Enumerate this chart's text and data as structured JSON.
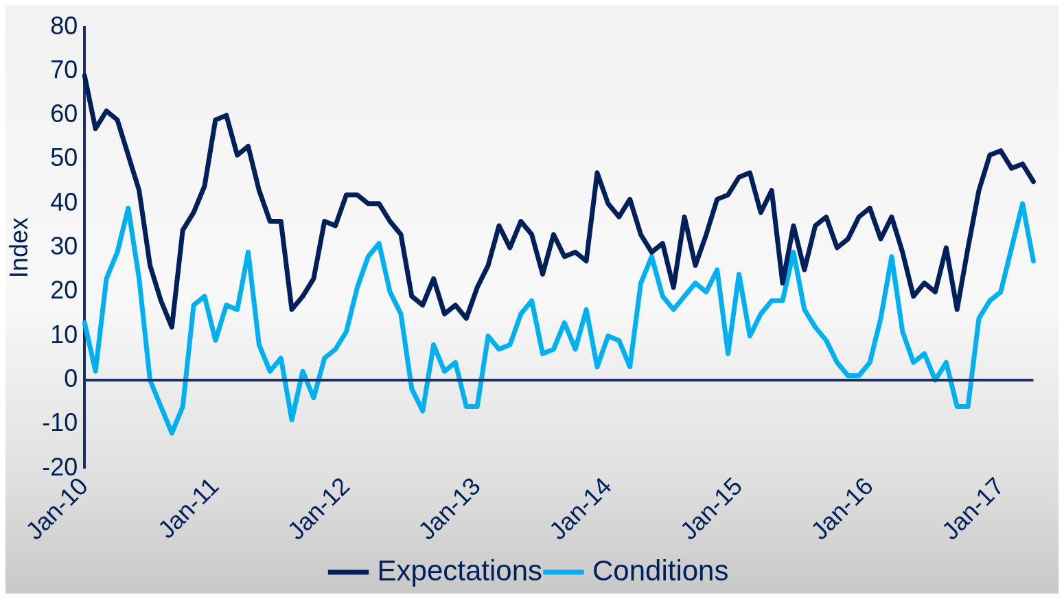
{
  "chart_data": {
    "type": "line",
    "ylabel": "Index",
    "categories": [
      "Jan-10",
      null,
      null,
      null,
      null,
      null,
      null,
      null,
      null,
      null,
      null,
      null,
      "Jan-11",
      null,
      null,
      null,
      null,
      null,
      null,
      null,
      null,
      null,
      null,
      null,
      "Jan-12",
      null,
      null,
      null,
      null,
      null,
      null,
      null,
      null,
      null,
      null,
      null,
      "Jan-13",
      null,
      null,
      null,
      null,
      null,
      null,
      null,
      null,
      null,
      null,
      null,
      "Jan-14",
      null,
      null,
      null,
      null,
      null,
      null,
      null,
      null,
      null,
      null,
      null,
      "Jan-15",
      null,
      null,
      null,
      null,
      null,
      null,
      null,
      null,
      null,
      null,
      null,
      "Jan-16",
      null,
      null,
      null,
      null,
      null,
      null,
      null,
      null,
      null,
      null,
      null,
      "Jan-17",
      null,
      null,
      null
    ],
    "series": [
      {
        "name": "Expectations",
        "color": "#00205b",
        "values": [
          69,
          57,
          61,
          59,
          51,
          43,
          26,
          18,
          12,
          34,
          38,
          44,
          59,
          60,
          51,
          53,
          43,
          36,
          36,
          16,
          19,
          23,
          36,
          35,
          42,
          42,
          40,
          40,
          36,
          33,
          19,
          17,
          23,
          15,
          17,
          14,
          21,
          26,
          35,
          30,
          36,
          33,
          24,
          33,
          28,
          29,
          27,
          47,
          40,
          37,
          41,
          33,
          29,
          31,
          21,
          37,
          26,
          33,
          41,
          42,
          46,
          47,
          38,
          43,
          22,
          35,
          25,
          35,
          37,
          30,
          32,
          37,
          39,
          32,
          37,
          29,
          19,
          22,
          20,
          30,
          16,
          30,
          43,
          51,
          52,
          48,
          49,
          45
        ]
      },
      {
        "name": "Conditions",
        "color": "#00b0f0",
        "values": [
          13,
          2,
          23,
          29,
          39,
          23,
          0,
          -6,
          -12,
          -6,
          17,
          19,
          9,
          17,
          16,
          29,
          8,
          2,
          5,
          -9,
          2,
          -4,
          5,
          7,
          11,
          21,
          28,
          31,
          20,
          15,
          -2,
          -7,
          8,
          2,
          4,
          -6,
          -6,
          10,
          7,
          8,
          15,
          18,
          6,
          7,
          13,
          7,
          16,
          3,
          10,
          9,
          3,
          22,
          28,
          19,
          16,
          19,
          22,
          20,
          25,
          6,
          24,
          10,
          15,
          18,
          18,
          29,
          16,
          12,
          9,
          4,
          1,
          1,
          4,
          14,
          28,
          11,
          4,
          6,
          0,
          4,
          -6,
          -6,
          14,
          18,
          20,
          30,
          40,
          27
        ]
      }
    ],
    "ylim": [
      -20,
      80
    ],
    "yticks": [
      -20,
      -10,
      0,
      10,
      20,
      30,
      40,
      50,
      60,
      70,
      80
    ],
    "ref_lines": [
      {
        "axis": "y",
        "value": 0,
        "color": "#1a2f66"
      }
    ],
    "legend": "bottom",
    "grid": false,
    "marker": "none",
    "line_style": "solid"
  }
}
